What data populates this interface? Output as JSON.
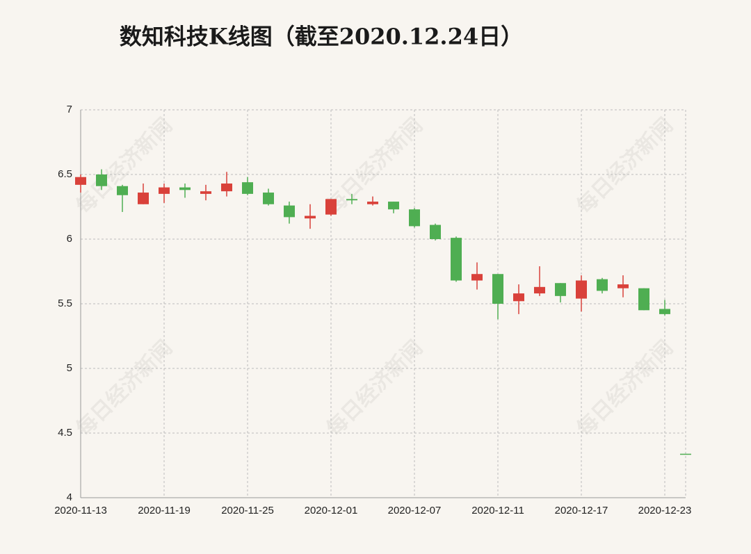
{
  "chart_data": {
    "type": "candlestick",
    "title": "数知科技K线图（截至2020.12.24日）",
    "watermark": "每日经济新闻",
    "categories": [
      "2020-11-13",
      null,
      null,
      null,
      "2020-11-19",
      null,
      null,
      null,
      "2020-11-25",
      null,
      null,
      null,
      "2020-12-01",
      null,
      null,
      null,
      "2020-12-07",
      null,
      null,
      null,
      "2020-12-11",
      null,
      null,
      null,
      "2020-12-17",
      null,
      null,
      null,
      "2020-12-23",
      null
    ],
    "open": [
      6.42,
      6.5,
      6.41,
      6.27,
      6.35,
      6.4,
      6.35,
      6.37,
      6.44,
      6.36,
      6.26,
      6.16,
      6.19,
      6.31,
      6.27,
      6.29,
      6.23,
      6.11,
      6.01,
      5.68,
      5.73,
      5.52,
      5.58,
      5.66,
      5.54,
      5.69,
      5.62,
      5.62,
      5.46,
      4.34
    ],
    "high": [
      6.5,
      6.54,
      6.42,
      6.43,
      6.43,
      6.43,
      6.42,
      6.52,
      6.48,
      6.39,
      6.29,
      6.27,
      6.31,
      6.35,
      6.33,
      6.29,
      6.24,
      6.12,
      6.02,
      5.82,
      5.73,
      5.65,
      5.79,
      5.66,
      5.72,
      5.7,
      5.72,
      5.62,
      5.53,
      4.34
    ],
    "low": [
      6.36,
      6.38,
      6.21,
      6.27,
      6.28,
      6.32,
      6.3,
      6.33,
      6.34,
      6.26,
      6.12,
      6.08,
      6.18,
      6.27,
      6.26,
      6.2,
      6.09,
      5.99,
      5.67,
      5.61,
      5.38,
      5.42,
      5.56,
      5.51,
      5.44,
      5.58,
      5.55,
      5.45,
      5.41,
      4.34
    ],
    "close": [
      6.48,
      6.41,
      6.34,
      6.36,
      6.4,
      6.38,
      6.37,
      6.43,
      6.35,
      6.27,
      6.17,
      6.18,
      6.31,
      6.3,
      6.29,
      6.23,
      6.1,
      6.0,
      5.68,
      5.73,
      5.5,
      5.58,
      5.63,
      5.56,
      5.68,
      5.6,
      5.65,
      5.45,
      5.42,
      4.34
    ],
    "up_color": "#d9413a",
    "down_color": "#4fae52",
    "ylim": [
      4,
      7
    ],
    "yticks": [
      4,
      4.5,
      5,
      5.5,
      6,
      6.5,
      7
    ],
    "grid": true
  }
}
